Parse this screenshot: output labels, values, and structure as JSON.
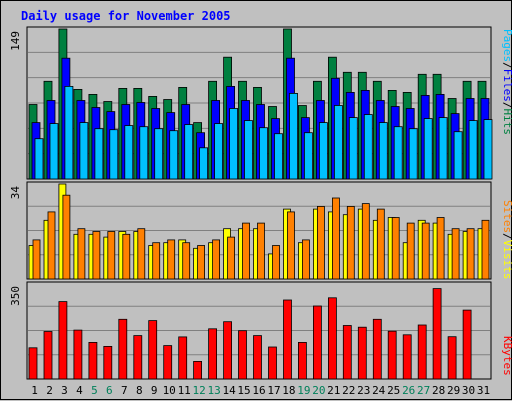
{
  "chart_data": {
    "type": "bar",
    "title": "Daily usage for November 2005",
    "days": [
      "1",
      "2",
      "3",
      "4",
      "5",
      "6",
      "7",
      "8",
      "9",
      "10",
      "11",
      "12",
      "13",
      "14",
      "15",
      "16",
      "17",
      "18",
      "19",
      "20",
      "21",
      "22",
      "23",
      "24",
      "25",
      "26",
      "27",
      "28",
      "29",
      "30",
      "31"
    ],
    "weekend_days": [
      "5",
      "6",
      "12",
      "13",
      "19",
      "20",
      "26",
      "27"
    ],
    "panels": [
      {
        "name": "hits-files-pages",
        "ymax": 149,
        "ylabel_max": "149",
        "series": [
          {
            "name": "Hits",
            "color": "#008040",
            "values": [
              74,
              97,
              149,
              89,
              84,
              77,
              90,
              90,
              82,
              79,
              91,
              56,
              97,
              121,
              97,
              91,
              72,
              149,
              73,
              97,
              121,
              106,
              106,
              97,
              88,
              86,
              104,
              104,
              80,
              97,
              97
            ]
          },
          {
            "name": "Files",
            "color": "#0000ff",
            "values": [
              56,
              78,
              120,
              78,
              71,
              67,
              74,
              76,
              70,
              66,
              74,
              46,
              78,
              92,
              78,
              74,
              60,
              120,
              61,
              78,
              100,
              86,
              88,
              78,
              72,
              70,
              83,
              84,
              65,
              80,
              80
            ]
          },
          {
            "name": "Pages",
            "color": "#00c0ff",
            "values": [
              40,
              55,
              92,
              56,
              50,
              49,
              53,
              52,
              50,
              48,
              54,
              31,
              55,
              70,
              58,
              51,
              45,
              85,
              46,
              56,
              73,
              61,
              64,
              56,
              52,
              50,
              60,
              61,
              47,
              58,
              59
            ]
          }
        ]
      },
      {
        "name": "sites-visits",
        "ymax": 34,
        "ylabel_max": "34",
        "series": [
          {
            "name": "Visits",
            "color": "#ffff00",
            "values": [
              12,
              21,
              34,
              16,
              16,
              15,
              17,
              17,
              12,
              13,
              14,
              11,
              13,
              18,
              18,
              18,
              9,
              25,
              13,
              25,
              24,
              23,
              25,
              21,
              22,
              13,
              21,
              20,
              16,
              17,
              18
            ]
          },
          {
            "name": "Sites",
            "color": "#ff8000",
            "values": [
              14,
              24,
              30,
              18,
              17,
              17,
              16,
              18,
              13,
              14,
              13,
              12,
              14,
              15,
              20,
              20,
              12,
              24,
              14,
              26,
              29,
              26,
              27,
              25,
              22,
              20,
              20,
              22,
              18,
              18,
              21
            ]
          }
        ]
      },
      {
        "name": "kbytes",
        "ymax": 350,
        "ylabel_max": "350",
        "series": [
          {
            "name": "KBytes",
            "color": "#ff0000",
            "values": [
              115,
              175,
              285,
              180,
              135,
              120,
              220,
              160,
              215,
              123,
              155,
              65,
              185,
              211,
              178,
              160,
              118,
              291,
              135,
              269,
              299,
              197,
              191,
              220,
              176,
              163,
              199,
              333,
              156,
              254,
              0
            ]
          }
        ]
      }
    ],
    "right_labels": {
      "hits_panel": [
        {
          "text": "Pages",
          "color": "#00c0ff"
        },
        {
          "text": "/",
          "color": "#000000"
        },
        {
          "text": "Files",
          "color": "#0000ff"
        },
        {
          "text": "/",
          "color": "#000000"
        },
        {
          "text": "Hits",
          "color": "#008040"
        }
      ],
      "sites_panel": [
        {
          "text": "Sites",
          "color": "#ff8000"
        },
        {
          "text": "/",
          "color": "#000000"
        },
        {
          "text": "Visits",
          "color": "#ffff00"
        }
      ],
      "kbytes_panel": [
        {
          "text": "KBytes",
          "color": "#ff0000"
        }
      ]
    },
    "colors": {
      "title": "#0000ff",
      "background": "#c0c0c0",
      "plot_border": "#000000",
      "grid": "#808080",
      "weekday_label": "#000000",
      "weekend_label": "#00805a"
    }
  }
}
